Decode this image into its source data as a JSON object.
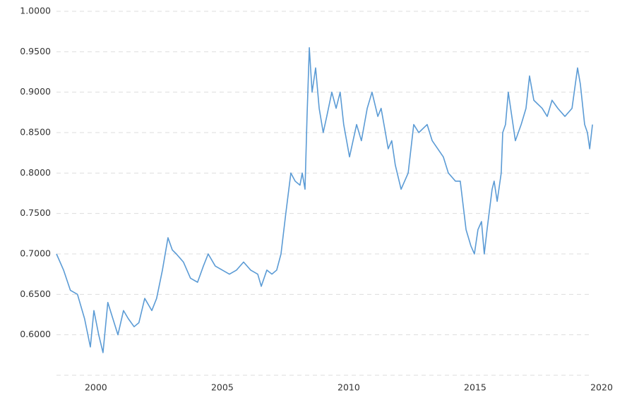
{
  "chart_data": {
    "type": "line",
    "x": [
      1998.44,
      1998.72,
      1998.99,
      1999.27,
      1999.55,
      1999.78,
      1999.92,
      2000.11,
      2000.28,
      2000.47,
      2000.67,
      2000.87,
      2001.09,
      2001.28,
      2001.51,
      2001.7,
      2001.93,
      2002.21,
      2002.4,
      2002.63,
      2002.85,
      2003.02,
      2003.18,
      2003.46,
      2003.74,
      2004.02,
      2004.25,
      2004.44,
      2004.72,
      2005.0,
      2005.28,
      2005.56,
      2005.84,
      2006.12,
      2006.4,
      2006.54,
      2006.76,
      2006.96,
      2007.15,
      2007.32,
      2007.51,
      2007.71,
      2007.88,
      2008.07,
      2008.16,
      2008.27,
      2008.35,
      2008.44,
      2008.55,
      2008.69,
      2008.83,
      2008.99,
      2009.13,
      2009.33,
      2009.5,
      2009.66,
      2009.8,
      2010.03,
      2010.17,
      2010.31,
      2010.5,
      2010.73,
      2010.92,
      2011.15,
      2011.28,
      2011.45,
      2011.56,
      2011.7,
      2011.84,
      2012.07,
      2012.35,
      2012.57,
      2012.77,
      2013.1,
      2013.3,
      2013.52,
      2013.74,
      2013.94,
      2014.22,
      2014.41,
      2014.64,
      2014.83,
      2014.97,
      2015.11,
      2015.25,
      2015.36,
      2015.47,
      2015.67,
      2015.75,
      2015.87,
      2016.03,
      2016.09,
      2016.2,
      2016.31,
      2016.45,
      2016.59,
      2016.82,
      2017.01,
      2017.15,
      2017.32,
      2017.65,
      2017.85,
      2018.04,
      2018.27,
      2018.55,
      2018.83,
      2019.05,
      2019.16,
      2019.33,
      2019.44,
      2019.53,
      2019.64
    ],
    "values": [
      0.7,
      0.68,
      0.655,
      0.65,
      0.62,
      0.585,
      0.63,
      0.6,
      0.578,
      0.64,
      0.62,
      0.6,
      0.63,
      0.62,
      0.61,
      0.615,
      0.645,
      0.63,
      0.645,
      0.68,
      0.72,
      0.705,
      0.7,
      0.69,
      0.67,
      0.665,
      0.685,
      0.7,
      0.685,
      0.68,
      0.675,
      0.68,
      0.69,
      0.68,
      0.675,
      0.66,
      0.68,
      0.675,
      0.68,
      0.7,
      0.75,
      0.8,
      0.79,
      0.785,
      0.8,
      0.78,
      0.87,
      0.955,
      0.9,
      0.93,
      0.88,
      0.85,
      0.87,
      0.9,
      0.88,
      0.9,
      0.86,
      0.82,
      0.84,
      0.86,
      0.84,
      0.88,
      0.9,
      0.87,
      0.88,
      0.85,
      0.83,
      0.84,
      0.81,
      0.78,
      0.8,
      0.86,
      0.85,
      0.86,
      0.84,
      0.83,
      0.82,
      0.8,
      0.79,
      0.79,
      0.73,
      0.71,
      0.7,
      0.73,
      0.74,
      0.7,
      0.73,
      0.78,
      0.79,
      0.765,
      0.8,
      0.85,
      0.86,
      0.9,
      0.87,
      0.84,
      0.86,
      0.88,
      0.92,
      0.89,
      0.88,
      0.87,
      0.89,
      0.88,
      0.87,
      0.88,
      0.93,
      0.91,
      0.86,
      0.85,
      0.83,
      0.86
    ],
    "color": "#5b9bd5",
    "xlim": [
      1998.44,
      2020
    ],
    "xticks": [
      2000,
      2005,
      2010,
      2015,
      2020
    ],
    "ylim": [
      0.55,
      1.0
    ],
    "yticks": [
      {
        "value": 0.6,
        "label": "0.6000"
      },
      {
        "value": 0.65,
        "label": "0.6500"
      },
      {
        "value": 0.7,
        "label": "0.7000"
      },
      {
        "value": 0.75,
        "label": "0.7500"
      },
      {
        "value": 0.8,
        "label": "0.8000"
      },
      {
        "value": 0.85,
        "label": "0.8500"
      },
      {
        "value": 0.9,
        "label": "0.9000"
      },
      {
        "value": 0.95,
        "label": "0.9500"
      },
      {
        "value": 1.0,
        "label": "1.0000"
      }
    ],
    "grid": true
  }
}
